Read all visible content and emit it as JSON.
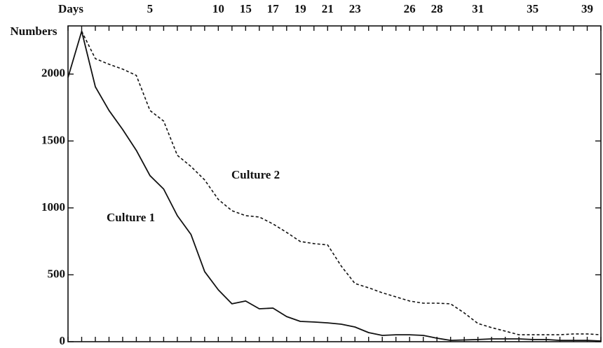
{
  "chart_data": {
    "type": "line",
    "x_label": "Days",
    "y_label": "Numbers",
    "categories": [
      null,
      null,
      null,
      null,
      null,
      null,
      "5",
      null,
      null,
      null,
      null,
      "10",
      null,
      "15",
      null,
      "17",
      null,
      "19",
      null,
      "21",
      null,
      "23",
      null,
      null,
      null,
      "26",
      null,
      "28",
      null,
      null,
      "31",
      null,
      null,
      null,
      "35",
      null,
      null,
      null,
      "39",
      null
    ],
    "series": [
      {
        "name": "Culture 1",
        "color": "#111111",
        "dash": false,
        "values": [
          1975,
          2320,
          1905,
          1728,
          1586,
          1430,
          1241,
          1141,
          942,
          801,
          524,
          387,
          283,
          304,
          246,
          251,
          188,
          152,
          147,
          141,
          131,
          110,
          68,
          47,
          52,
          52,
          47,
          26,
          10,
          13,
          16,
          21,
          21,
          21,
          16,
          16,
          10,
          10,
          10,
          5
        ]
      },
      {
        "name": "Culture 2",
        "color": "#111111",
        "dash": true,
        "values": [
          null,
          2320,
          2115,
          2073,
          2037,
          1990,
          1728,
          1649,
          1393,
          1309,
          1209,
          1063,
          979,
          942,
          932,
          880,
          817,
          749,
          733,
          723,
          565,
          435,
          403,
          366,
          335,
          304,
          288,
          288,
          283,
          215,
          136,
          105,
          79,
          52,
          52,
          52,
          52,
          58,
          58,
          52
        ]
      }
    ],
    "ylim": [
      0,
      2360
    ],
    "yticks": [
      0,
      500,
      1000,
      1500,
      2000
    ]
  }
}
